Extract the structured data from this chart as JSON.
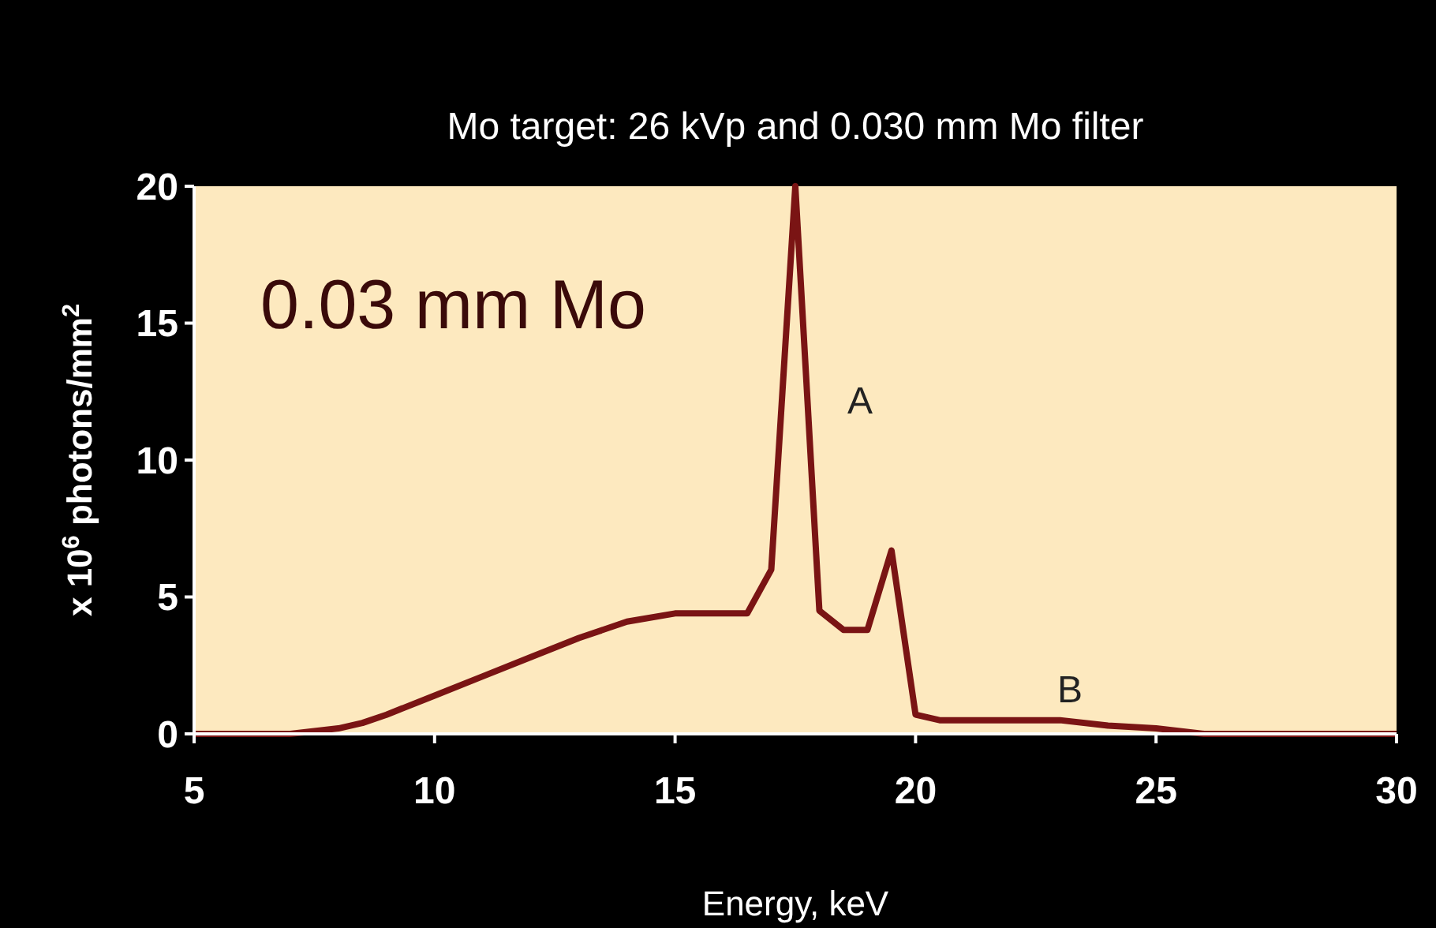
{
  "chart_data": {
    "type": "line",
    "title": "Mo target: 26 kVp and 0.030 mm Mo filter",
    "xlabel": "Energy, keV",
    "ylabel": "x 10$^{6}$ photons/mm$^{2}$",
    "x": [
      5,
      7,
      7.5,
      8,
      8.5,
      9,
      10,
      11,
      12,
      13,
      14,
      15,
      16.5,
      17,
      17.5,
      18,
      18.5,
      19,
      19.5,
      20,
      20.5,
      23,
      24,
      25,
      26,
      30
    ],
    "series": [
      {
        "color": "#7a1414",
        "values": [
          0,
          0,
          0.1,
          0.2,
          0.4,
          0.7,
          1.4,
          2.1,
          2.8,
          3.5,
          4.1,
          4.4,
          4.4,
          6,
          20,
          4.5,
          3.8,
          3.8,
          6.7,
          0.7,
          0.5,
          0.5,
          0.3,
          0.2,
          0,
          0
        ]
      }
    ],
    "xlim": [
      5,
      30
    ],
    "ylim": [
      0,
      20
    ],
    "xticks": [
      5,
      10,
      15,
      20,
      25,
      30
    ],
    "yticks": [
      0,
      5,
      10,
      15,
      20
    ],
    "grid": false,
    "marker": "none",
    "line_style": "solid",
    "annotations": [
      "0.03 mm Mo",
      "A",
      "B"
    ]
  }
}
